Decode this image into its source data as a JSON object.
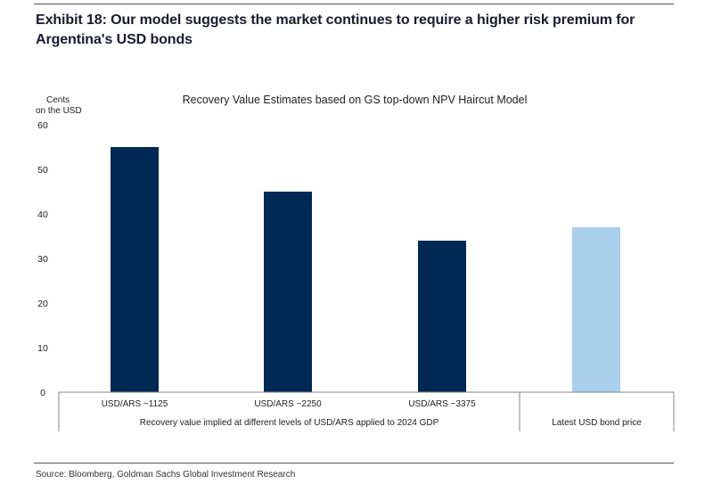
{
  "exhibit_title": "Exhibit 18: Our model suggests the market continues to require a higher risk premium for Argentina's USD bonds",
  "source": "Source: Bloomberg, Goldman Sachs Global Investment Research",
  "chart_data": {
    "type": "bar",
    "title": "Recovery Value Estimates based on GS top-down NPV Haircut Model",
    "ylabel_lines": [
      "Cents",
      "on the USD"
    ],
    "xlabel": "",
    "ylim": [
      0,
      60
    ],
    "yticks": [
      0,
      10,
      20,
      30,
      40,
      50,
      60
    ],
    "categories": [
      "USD/ARS ~1125",
      "USD/ARS ~2250",
      "USD/ARS ~3375",
      ""
    ],
    "values": [
      55,
      45,
      34,
      37
    ],
    "group_labels": [
      "Recovery value implied at different levels of USD/ARS applied to 2024 GDP",
      "Latest USD bond price"
    ],
    "colors": [
      "#002855",
      "#002855",
      "#002855",
      "#a9d0ec"
    ]
  }
}
